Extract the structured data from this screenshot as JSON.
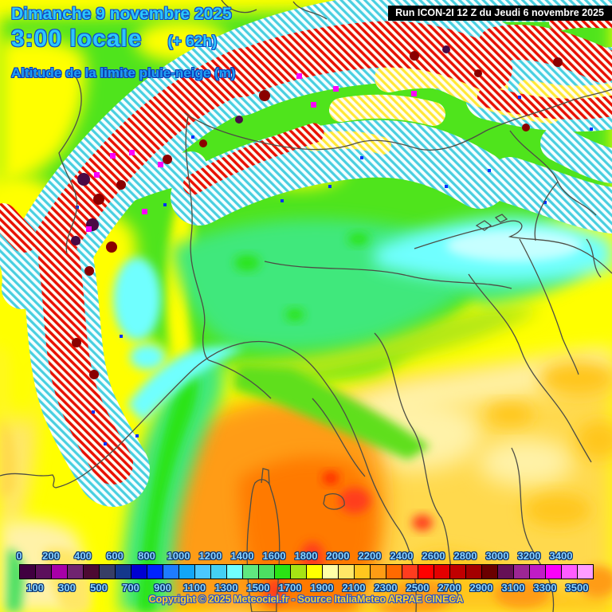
{
  "header": {
    "date_line": "Dimanche 9 novembre 2025",
    "time_line": "3:00 locale",
    "offset_label": "(+ 62h)",
    "parameter_title": "Altitude de la limite pluie-neige (m)",
    "run_info": "Run ICON-2I 12 Z du Jeudi 6 novembre 2025"
  },
  "legend": {
    "unit": "m",
    "top_labels": [
      "0",
      "200",
      "400",
      "600",
      "800",
      "1000",
      "1200",
      "1400",
      "1600",
      "1800",
      "2000",
      "2200",
      "2400",
      "2600",
      "2800",
      "3000",
      "3200",
      "3400"
    ],
    "bottom_labels": [
      "100",
      "300",
      "500",
      "700",
      "900",
      "1100",
      "1300",
      "1500",
      "1700",
      "1900",
      "2100",
      "2300",
      "2500",
      "2700",
      "2900",
      "3100",
      "3300",
      "3500"
    ],
    "colors": [
      "#400040",
      "#5c105c",
      "#a800a8",
      "#702470",
      "#4c0a32",
      "#383e66",
      "#14388c",
      "#0000d2",
      "#0022ff",
      "#1e7cff",
      "#12a6f8",
      "#4ac8ff",
      "#44d0f4",
      "#70ffff",
      "#60e880",
      "#4ce062",
      "#2ae414",
      "#a6e414",
      "#ffff00",
      "#ffffa6",
      "#ffe766",
      "#ffc61e",
      "#ff9c14",
      "#ff6a00",
      "#ff3c1e",
      "#ff0000",
      "#e40000",
      "#c00000",
      "#a40000",
      "#6a0000",
      "#661056",
      "#9c2694",
      "#c01cc6",
      "#fb00fb",
      "#ff5cff",
      "#ff9cff"
    ]
  },
  "footer": {
    "copyright": "Copyright © 2025 Meteociel.fr - Source ItaliaMeteo ARPAE CINECA"
  },
  "map_colors": {
    "yellow": "#ffff00",
    "green": "#50e41e",
    "brightGreen": "#2ae414",
    "midGreen": "#4ce062",
    "emerald": "#40e87c",
    "ridgeGreen": "#5fdf1e",
    "yellowGreen": "#b4e814",
    "cyan": "#70ffff",
    "paleCyan": "#c6ffff",
    "paleYellow": "#fff2a8",
    "lightGold": "#ffe766",
    "gold": "#ffd94d",
    "darkGold": "#ffc61e",
    "orange": "#ff9c14",
    "deepOrange": "#ff7a00",
    "redSpot": "#ff3c1e",
    "hatchRed": "#e81000",
    "hatchCyan": "#49cfe0",
    "hatchYellow": "#ffe838",
    "magenta": "#fb00fb",
    "darkRed": "#8a0000",
    "darkPurple": "#4a0a45",
    "blueSpeck": "#0030ff",
    "border": "#4d4d45"
  },
  "text_colors": {
    "title_fill": "#2cc8fa",
    "title_outline": "#1148c8",
    "param_fill": "#1ea0f2",
    "param_outline": "#0c38b8",
    "scale_label_fill": "#8ad4ff",
    "scale_label_outline": "#063070",
    "copyright_fill": "#ffd226",
    "copyright_outline": "#2850d0",
    "run_bg": "#000000",
    "run_fg": "#ffffff"
  }
}
